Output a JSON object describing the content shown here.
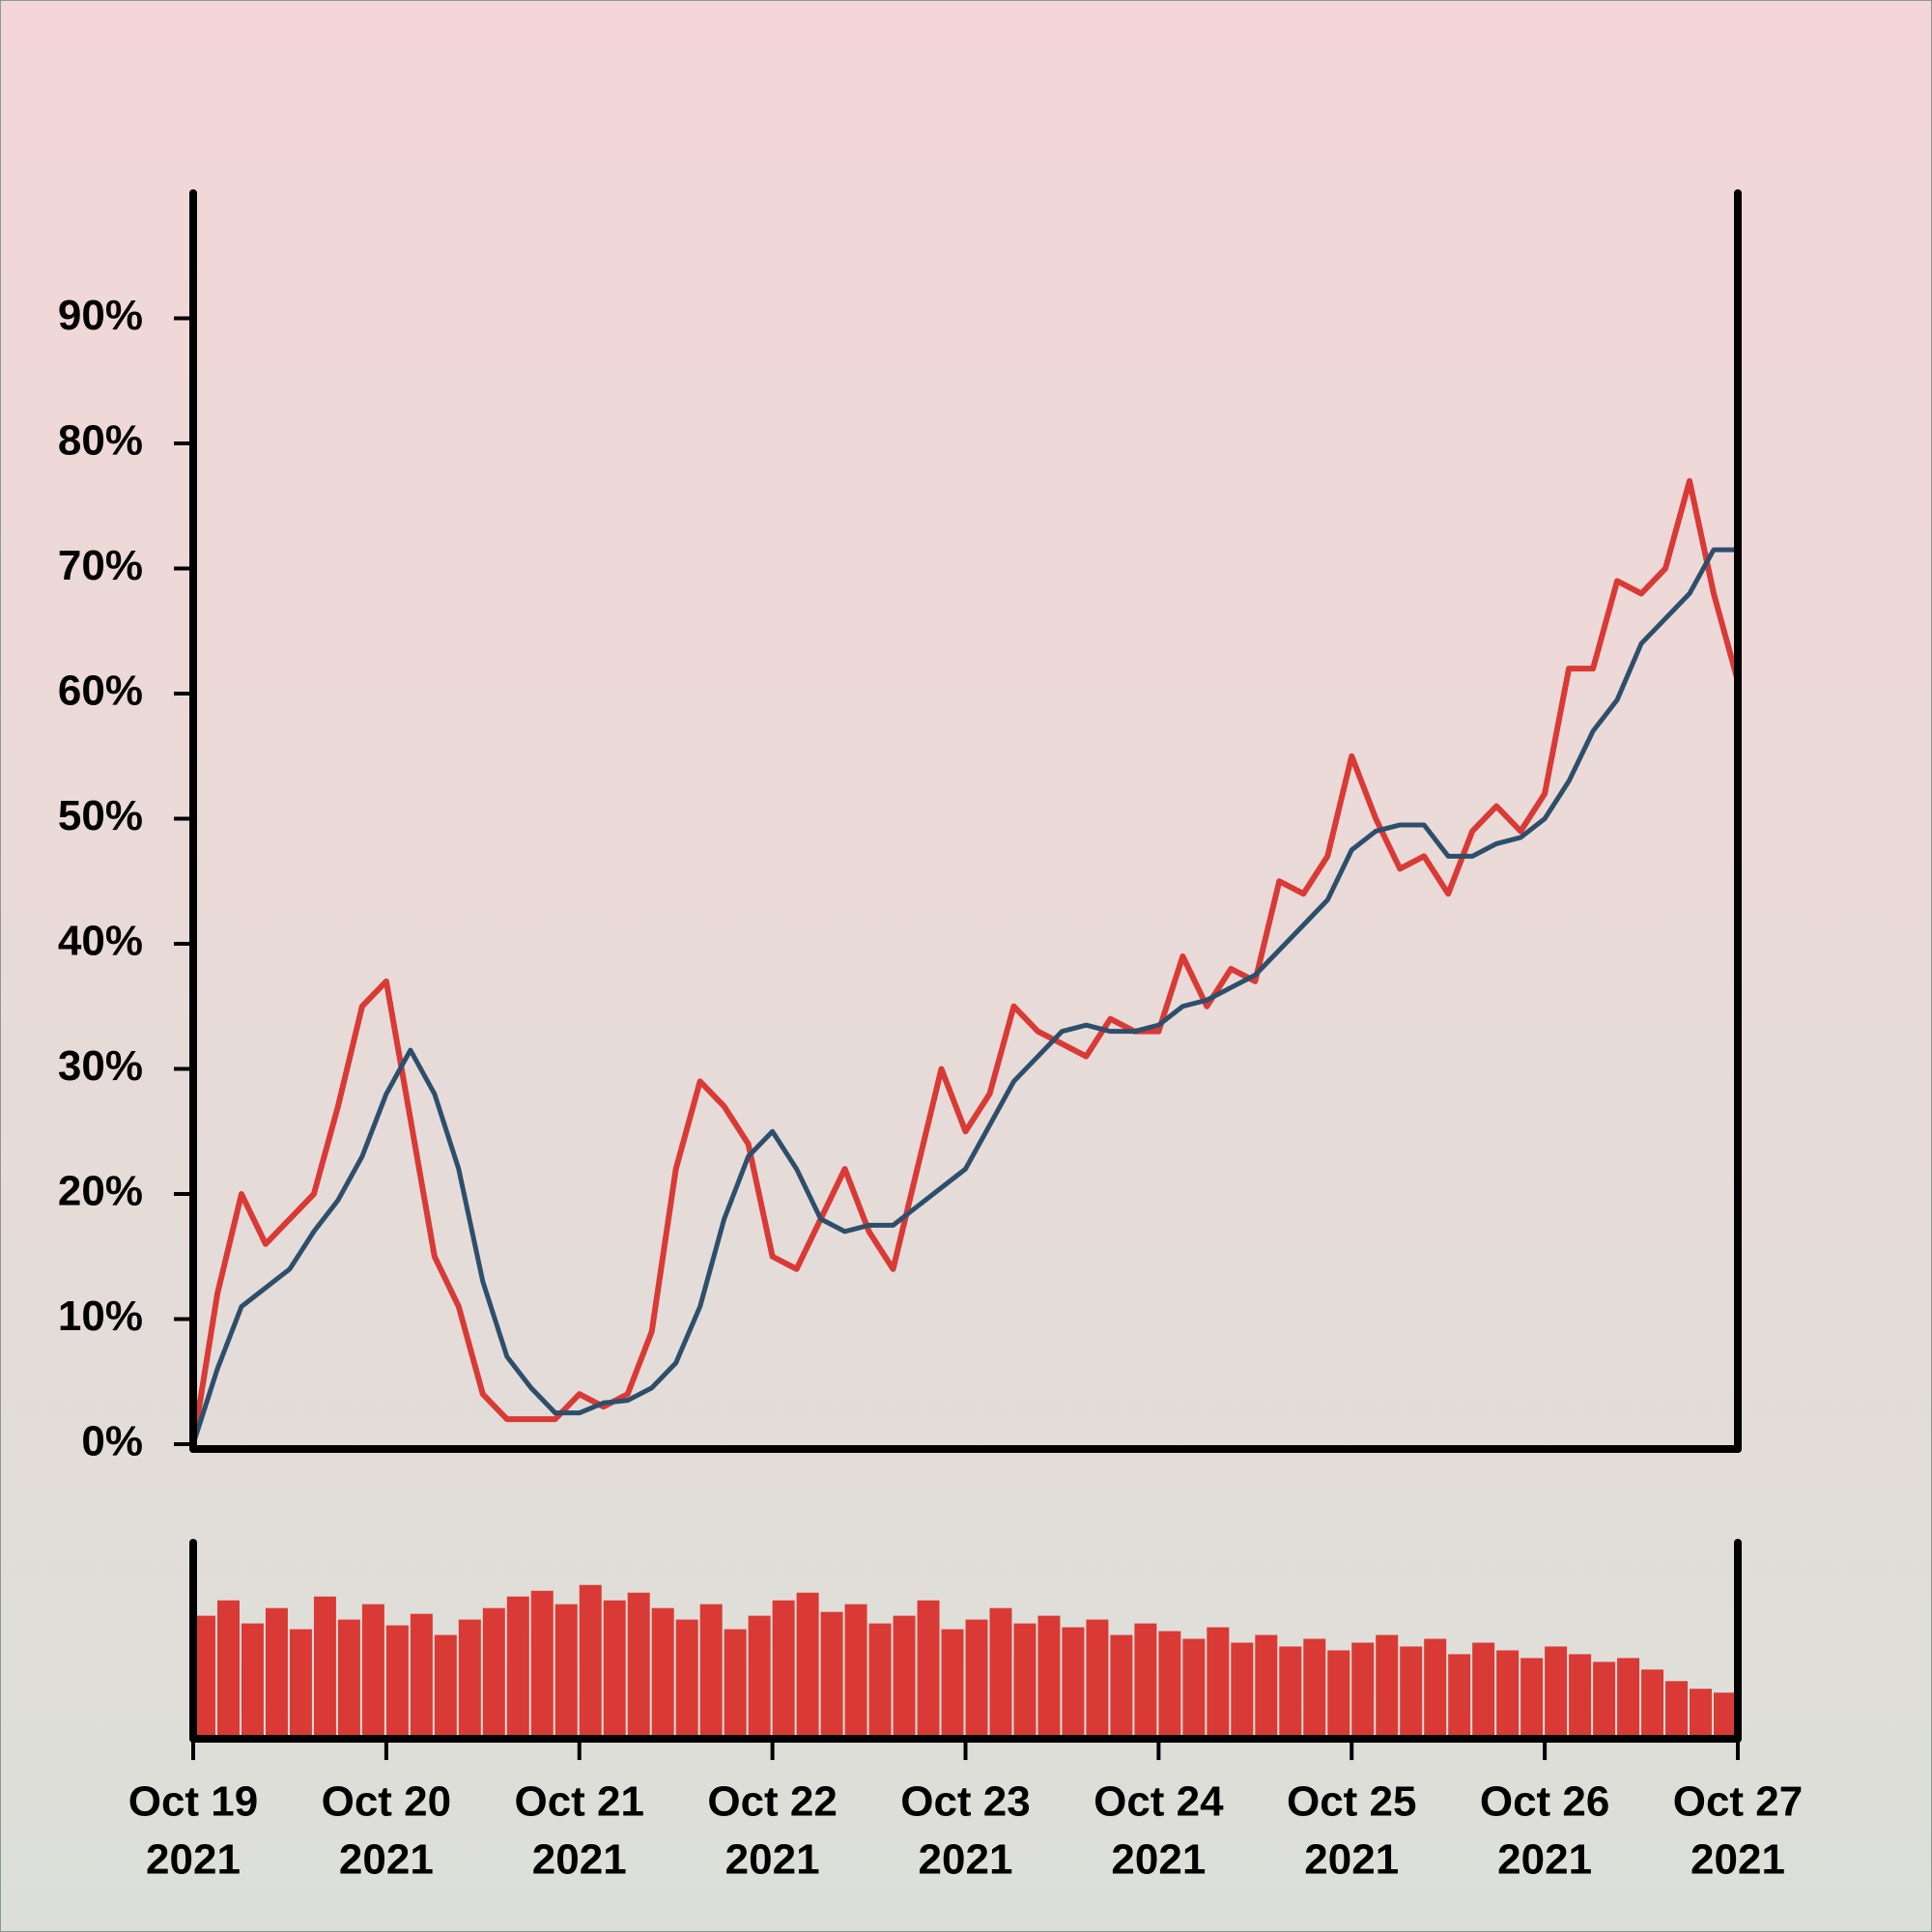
{
  "chart_data": {
    "type": "line",
    "x": [
      0,
      0.125,
      0.25,
      0.375,
      0.5,
      0.625,
      0.75,
      0.875,
      1,
      1.125,
      1.25,
      1.375,
      1.5,
      1.625,
      1.75,
      1.875,
      2,
      2.125,
      2.25,
      2.375,
      2.5,
      2.625,
      2.75,
      2.875,
      3,
      3.125,
      3.25,
      3.375,
      3.5,
      3.625,
      3.75,
      3.875,
      4,
      4.125,
      4.25,
      4.375,
      4.5,
      4.625,
      4.75,
      4.875,
      5,
      5.125,
      5.25,
      5.375,
      5.5,
      5.625,
      5.75,
      5.875,
      6,
      6.125,
      6.25,
      6.375,
      6.5,
      6.625,
      6.75,
      6.875,
      7,
      7.125,
      7.25,
      7.375,
      7.5,
      7.625,
      7.75,
      7.875,
      8
    ],
    "xlim": [
      0,
      8
    ],
    "xticks": [
      {
        "value": 0,
        "label": [
          "Oct 19",
          "2021"
        ]
      },
      {
        "value": 1,
        "label": [
          "Oct 20",
          "2021"
        ]
      },
      {
        "value": 2,
        "label": [
          "Oct 21",
          "2021"
        ]
      },
      {
        "value": 3,
        "label": [
          "Oct 22",
          "2021"
        ]
      },
      {
        "value": 4,
        "label": [
          "Oct 23",
          "2021"
        ]
      },
      {
        "value": 5,
        "label": [
          "Oct 24",
          "2021"
        ]
      },
      {
        "value": 6,
        "label": [
          "Oct 25",
          "2021"
        ]
      },
      {
        "value": 7,
        "label": [
          "Oct 26",
          "2021"
        ]
      },
      {
        "value": 8,
        "label": [
          "Oct 27",
          "2021"
        ]
      }
    ],
    "ylim": [
      0,
      100
    ],
    "yticks": [
      {
        "value": 0,
        "label": "0%"
      },
      {
        "value": 10,
        "label": "10%"
      },
      {
        "value": 20,
        "label": "20%"
      },
      {
        "value": 30,
        "label": "30%"
      },
      {
        "value": 40,
        "label": "40%"
      },
      {
        "value": 50,
        "label": "50%"
      },
      {
        "value": 60,
        "label": "60%"
      },
      {
        "value": 70,
        "label": "70%"
      },
      {
        "value": 80,
        "label": "80%"
      },
      {
        "value": 90,
        "label": "90%"
      }
    ],
    "series": [
      {
        "color": "#d93a35",
        "values": [
          0,
          12,
          20,
          16,
          18,
          20,
          27,
          35,
          37,
          26,
          15,
          11,
          4,
          2,
          2,
          2,
          4,
          3,
          4,
          9,
          22,
          29,
          27,
          24,
          15,
          14,
          18,
          22,
          17,
          14,
          22,
          30,
          25,
          28,
          35,
          33,
          32,
          31,
          34,
          33,
          33,
          39,
          35,
          38,
          37,
          45,
          44,
          47,
          55,
          50,
          46,
          47,
          44,
          49,
          51,
          49,
          52,
          62,
          62,
          69,
          68,
          70,
          77,
          68,
          61
        ]
      },
      {
        "color": "#2d4f6b",
        "values": [
          0,
          6,
          11,
          12.5,
          14,
          17,
          19.5,
          23,
          28,
          31.5,
          28,
          22,
          13,
          7,
          4.5,
          2.5,
          2.5,
          3.3,
          3.5,
          4.5,
          6.5,
          11,
          18,
          23,
          25,
          22,
          18,
          17,
          17.5,
          17.5,
          19,
          20.5,
          22,
          25.5,
          29,
          31,
          33,
          33.5,
          33,
          33,
          33.5,
          35,
          35.5,
          36.5,
          37.5,
          39.5,
          41.5,
          43.5,
          47.5,
          49,
          49.5,
          49.5,
          47,
          47,
          48,
          48.5,
          50,
          53,
          57,
          59.5,
          64,
          66,
          68,
          71.5,
          71.5
        ]
      }
    ],
    "volume": {
      "color": "#d93a35",
      "ylim": [
        0,
        100
      ],
      "values": [
        62,
        70,
        58,
        66,
        55,
        72,
        60,
        68,
        57,
        63,
        52,
        60,
        66,
        72,
        75,
        68,
        78,
        70,
        74,
        66,
        60,
        68,
        55,
        62,
        70,
        74,
        64,
        68,
        58,
        62,
        70,
        55,
        60,
        66,
        58,
        62,
        56,
        60,
        52,
        58,
        54,
        50,
        56,
        48,
        52,
        46,
        50,
        44,
        48,
        52,
        46,
        50,
        42,
        48,
        44,
        40,
        46,
        42,
        38,
        40,
        34,
        28,
        24,
        22
      ]
    },
    "grid": false
  }
}
